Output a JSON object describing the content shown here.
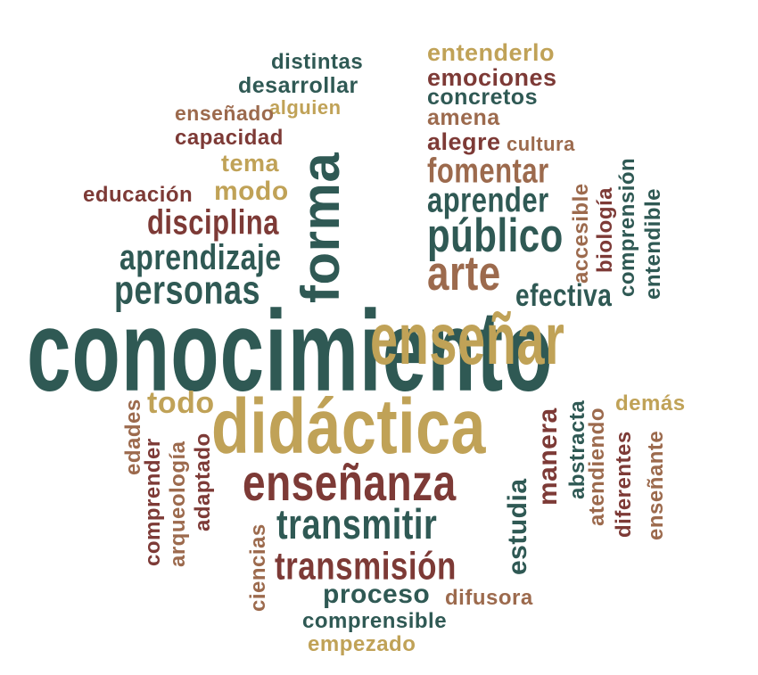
{
  "words": {
    "conocimiento": "conocimiento",
    "didactica": "didáctica",
    "ensenar": "enseñar",
    "forma": "forma",
    "ensenanza": "enseñanza",
    "transmitir": "transmitir",
    "transmision": "transmisión",
    "arte": "arte",
    "publico": "público",
    "aprender": "aprender",
    "fomentar": "fomentar",
    "personas": "personas",
    "aprendizaje": "aprendizaje",
    "disciplina": "disciplina",
    "educacion": "educación",
    "modo": "modo",
    "tema": "tema",
    "capacidad": "capacidad",
    "ensenado": "enseñado",
    "alguien": "alguien",
    "desarrollar": "desarrollar",
    "distintas": "distintas",
    "entenderlo": "entenderlo",
    "emociones": "emociones",
    "concretos": "concretos",
    "amena": "amena",
    "alegre": "alegre",
    "cultura": "cultura",
    "efectiva": "efectiva",
    "accesible": "accesible",
    "biologia": "biología",
    "comprension": "comprensión",
    "entendible": "entendible",
    "todo": "todo",
    "edades": "edades",
    "comprender": "comprender",
    "arqueologia": "arqueología",
    "adaptado": "adaptado",
    "ciencias": "ciencias",
    "proceso": "proceso",
    "difusora": "difusora",
    "comprensible": "comprensible",
    "empezado": "empezado",
    "estudia": "estudia",
    "manera": "manera",
    "abstracta": "abstracta",
    "atendiendo": "atendiendo",
    "diferentes": "diferentes",
    "demas": "demás",
    "ensenante": "enseñante"
  },
  "colors": {
    "green": "#2f5954",
    "gold": "#c0a257",
    "red": "#7d3a36",
    "brown": "#9c6a4d"
  }
}
